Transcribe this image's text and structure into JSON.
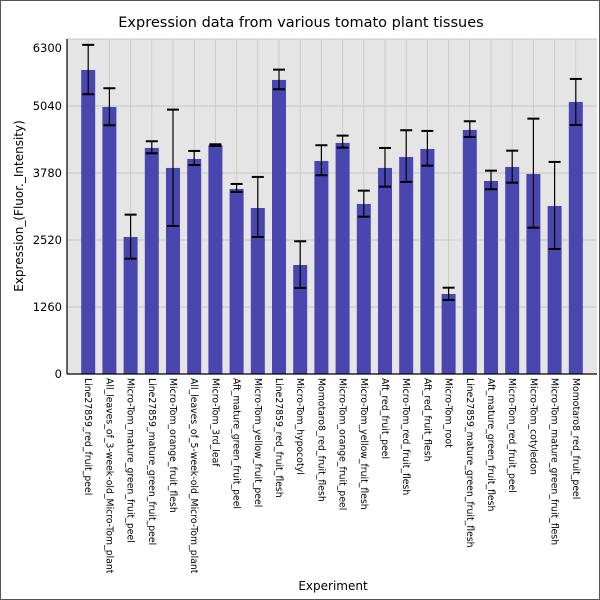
{
  "chart_data": {
    "type": "bar",
    "title": "Expression data from various tomato plant tissues",
    "xlabel": "Experiment",
    "ylabel": "Expression_(Fluor._Intensity)",
    "ylim": [
      0,
      6300
    ],
    "yticks": [
      0,
      1260,
      2520,
      3780,
      5040,
      6300
    ],
    "grid": true,
    "bar_color": "#4a46b0",
    "background_color": "#e5e5e5",
    "categories": [
      "Line27859_red_fruit_peel",
      "All_leaves_of_3-week-old_Micro-Tom_plant",
      "Micro-Tom_mature_green_fruit_peel",
      "Line27859_mature_green_fruit_peel",
      "Micro-Tom_orange_fruit_flesh",
      "All_leaves_of_5-week-old_Micro-Tom_plant",
      "Micro-Tom_3rd_leaf",
      "Aft_mature_green_fruit_peel",
      "Micro-Tom_yellow_fruit_peel",
      "Line27859_red_fruit_flesh",
      "Micro-Tom_hypocotyl",
      "Momotaro8_red_fruit_flesh",
      "Micro-Tom_orange_fruit_peel",
      "Micro-Tom_yellow_fruit_flesh",
      "Aft_red_fruit_peel",
      "Micro-Tom_red_fruit_flesh",
      "Aft_red_fruit_flesh",
      "Micro-Tom_root",
      "Line27859_mature_green_fruit_flesh",
      "Aft_mature_green_fruit_flesh",
      "Micro-Tom_red_fruit_peel",
      "Micro-Tom_cotyledon",
      "Micro-Tom_mature_green_fruit_flesh",
      "Momotaro8_red_fruit_peel"
    ],
    "values": [
      5718,
      5022,
      2577,
      4251,
      3875,
      4044,
      4302,
      3480,
      3122,
      5530,
      2050,
      4006,
      4345,
      3198,
      3875,
      4082,
      4232,
      1505,
      4590,
      3630,
      3894,
      3762,
      3160,
      5116
    ],
    "error_high": [
      6190,
      5374,
      2997,
      4377,
      4972,
      4195,
      4320,
      3574,
      3706,
      5724,
      2496,
      4302,
      4483,
      3448,
      4251,
      4584,
      4571,
      1623,
      4753,
      3824,
      4200,
      4802,
      3988,
      5549
    ],
    "error_low": [
      5261,
      4678,
      2169,
      4151,
      2784,
      3931,
      4290,
      3424,
      2577,
      5355,
      1618,
      3737,
      4257,
      2959,
      3523,
      3612,
      3918,
      1392,
      4458,
      3474,
      3598,
      2752,
      2351,
      4684
    ]
  }
}
